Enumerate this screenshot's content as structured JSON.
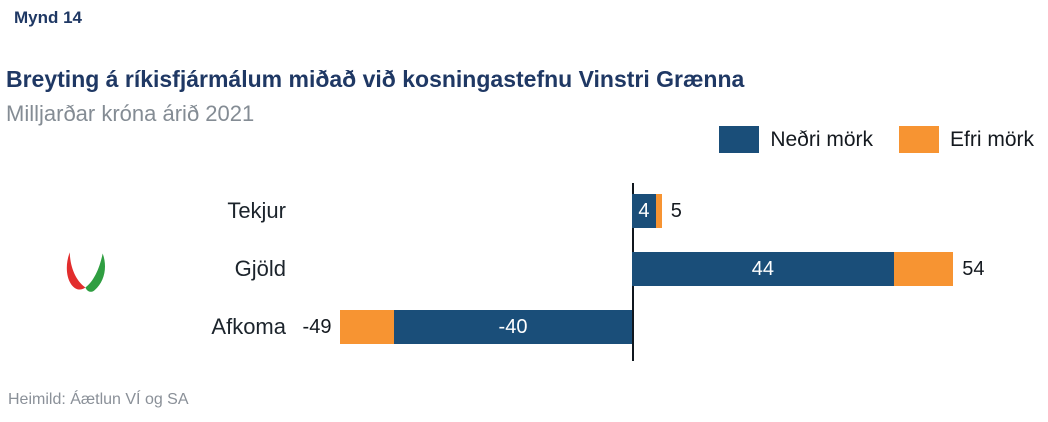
{
  "header": {
    "figure_label": "Mynd 14",
    "title": "Breyting á ríkisfjármálum miðað við kosningastefnu Vinstri Grænna",
    "subtitle": "Milljarðar króna árið 2021"
  },
  "legend": {
    "items": [
      {
        "label": "Neðri mörk",
        "color": "#1a4e79"
      },
      {
        "label": "Efri mörk",
        "color": "#f79432"
      }
    ]
  },
  "footer": {
    "source": "Heimild: Áætlun VÍ og SA"
  },
  "colors": {
    "title_navy": "#1f3864",
    "bar_blue": "#1a4e79",
    "bar_orange": "#f79432",
    "subtitle_gray": "#848c94",
    "axis": "#10171e",
    "logo_red": "#e22d2d",
    "logo_green": "#2f9e41"
  },
  "logo_icon": "vinstri-graen-v-logo",
  "chart_data": {
    "type": "bar",
    "orientation": "horizontal",
    "title": "Breyting á ríkisfjármálum miðað við kosningastefnu Vinstri Grænna",
    "subtitle": "Milljarðar króna árið 2021",
    "unit": "Milljarðar króna",
    "categories": [
      "Tekjur",
      "Gjöld",
      "Afkoma"
    ],
    "series": [
      {
        "name": "Neðri mörk",
        "color": "#1a4e79",
        "values": [
          4,
          44,
          -40
        ]
      },
      {
        "name": "Efri mörk",
        "color": "#f79432",
        "values": [
          5,
          54,
          -49
        ]
      }
    ],
    "labels": {
      "inner": [
        "4",
        "44",
        "-40"
      ],
      "outer": [
        "5",
        "54",
        "-49"
      ]
    },
    "xlim": [
      -55,
      62
    ],
    "grid": false,
    "legend_position": "top-right",
    "zero_axis_line": true
  }
}
